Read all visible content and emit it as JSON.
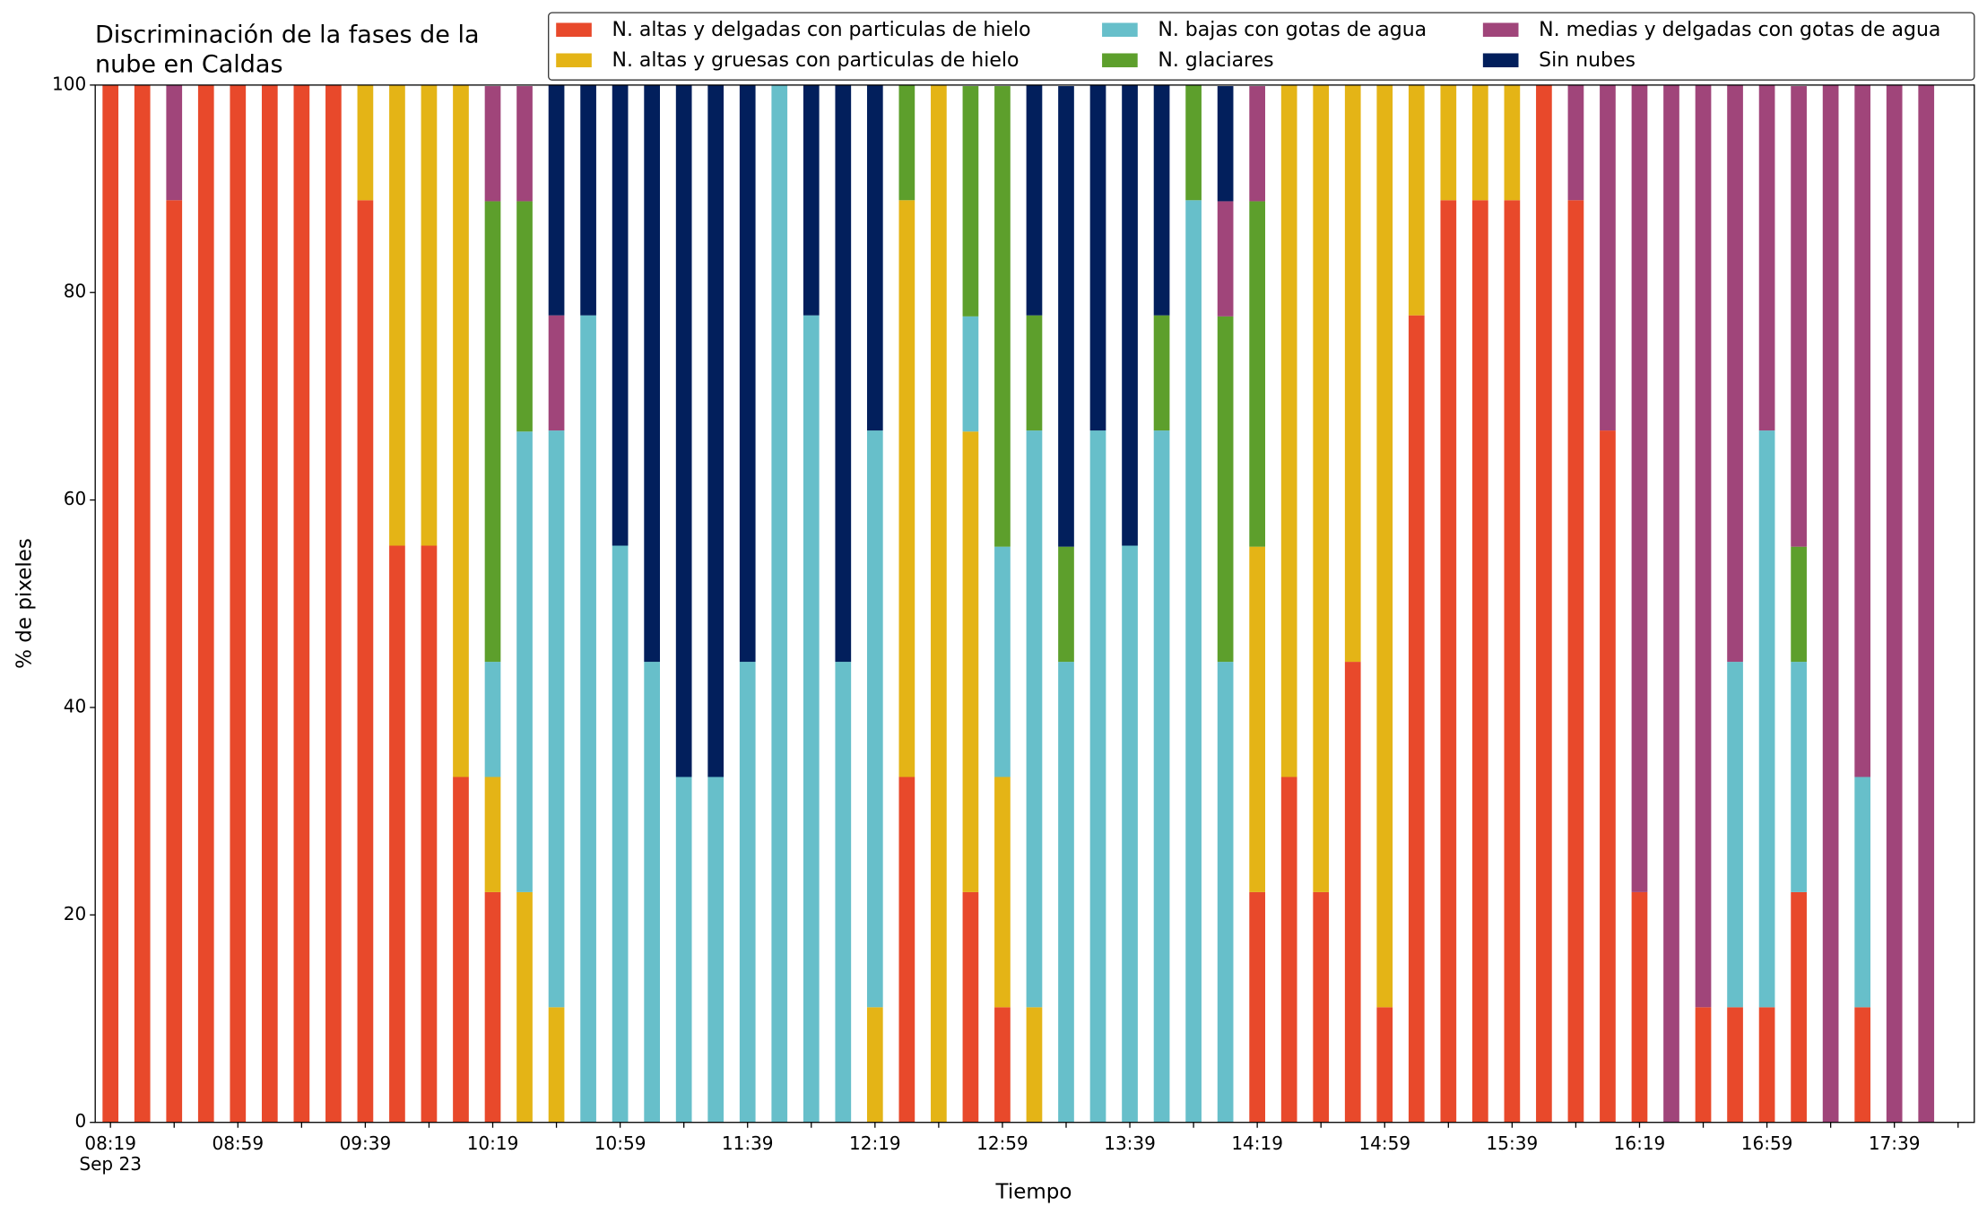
{
  "chart_data": {
    "type": "stacked_bar",
    "title": [
      "Discriminación de la fases de la",
      "nube en Caldas"
    ],
    "xlabel": "Tiempo",
    "ylabel": "% de pixeles",
    "categories": [
      "08:19",
      null,
      null,
      null,
      "08:59",
      null,
      null,
      null,
      "09:39",
      null,
      null,
      null,
      "10:19",
      null,
      null,
      null,
      "10:59",
      null,
      null,
      null,
      "11:39",
      null,
      null,
      null,
      "12:19",
      null,
      null,
      null,
      "12:59",
      null,
      null,
      null,
      "13:39",
      null,
      null,
      null,
      "14:19",
      null,
      null,
      null,
      "14:59",
      null,
      null,
      null,
      "15:39",
      null,
      null,
      null,
      "16:19",
      null,
      null,
      null,
      "16:59",
      null,
      null,
      null,
      "17:39",
      null
    ],
    "date_label": "Sep 23",
    "ylim": [
      0,
      100
    ],
    "yticks": [
      0,
      20,
      40,
      60,
      80,
      100
    ],
    "legend": "upper right",
    "series": [
      {
        "name": "N. altas y delgadas con particulas de hielo",
        "color": "#e8492b",
        "values": [
          100,
          100,
          88.9,
          100,
          100,
          100,
          100,
          100,
          88.9,
          55.6,
          55.6,
          33.3,
          22.2,
          0,
          0,
          0,
          0,
          0,
          0,
          0,
          0,
          0,
          0,
          0,
          0,
          33.3,
          0,
          22.2,
          11.1,
          0,
          0,
          0,
          0,
          0,
          0,
          0,
          22.2,
          33.3,
          22.2,
          44.4,
          11.1,
          77.8,
          88.9,
          88.9,
          88.9,
          100,
          88.9,
          66.7,
          22.2,
          0,
          11.1,
          11.1,
          11.1,
          22.2,
          0,
          11.1,
          0,
          0
        ]
      },
      {
        "name": "N. altas y gruesas con particulas de hielo",
        "color": "#e4b416",
        "values": [
          0,
          0,
          0,
          0,
          0,
          0,
          0,
          0,
          11.1,
          44.4,
          44.4,
          66.7,
          11.1,
          22.2,
          11.1,
          0,
          0,
          0,
          0,
          0,
          0,
          0,
          0,
          0,
          11.1,
          55.6,
          100,
          44.4,
          22.2,
          11.1,
          0,
          0,
          0,
          0,
          0,
          0,
          33.3,
          66.7,
          77.8,
          55.6,
          88.9,
          22.2,
          11.1,
          11.1,
          11.1,
          0,
          0,
          0,
          0,
          0,
          0,
          0,
          0,
          0,
          0,
          0,
          0,
          0
        ]
      },
      {
        "name": "N. bajas con gotas de agua",
        "color": "#67bfca",
        "values": [
          0,
          0,
          0,
          0,
          0,
          0,
          0,
          0,
          0,
          0,
          0,
          0,
          11.1,
          44.4,
          55.6,
          77.8,
          55.6,
          44.4,
          33.3,
          33.3,
          44.4,
          100,
          77.8,
          44.4,
          55.6,
          0,
          0,
          11.1,
          22.2,
          55.6,
          44.4,
          66.7,
          55.6,
          66.7,
          88.9,
          44.4,
          0,
          0,
          0,
          0,
          0,
          0,
          0,
          0,
          0,
          0,
          0,
          0,
          0,
          0,
          0,
          33.3,
          55.6,
          22.2,
          0,
          22.2,
          0,
          0
        ]
      },
      {
        "name": "N. glaciares",
        "color": "#5d9f2c",
        "values": [
          0,
          0,
          0,
          0,
          0,
          0,
          0,
          0,
          0,
          0,
          0,
          0,
          44.4,
          22.2,
          0,
          0,
          0,
          0,
          0,
          0,
          0,
          0,
          0,
          0,
          0,
          11.1,
          0,
          22.2,
          44.4,
          11.1,
          11.1,
          0,
          0,
          11.1,
          11.1,
          33.3,
          33.3,
          0,
          0,
          0,
          0,
          0,
          0,
          0,
          0,
          0,
          0,
          0,
          0,
          0,
          0,
          0,
          0,
          11.1,
          0,
          0,
          0,
          0
        ]
      },
      {
        "name": "N. medias y delgadas con gotas de agua",
        "color": "#a0457a",
        "values": [
          0,
          0,
          11.1,
          0,
          0,
          0,
          0,
          0,
          0,
          0,
          0,
          0,
          11.1,
          11.1,
          11.1,
          0,
          0,
          0,
          0,
          0,
          0,
          0,
          0,
          0,
          0,
          0,
          0,
          0,
          0,
          0,
          0,
          0,
          0,
          0,
          0,
          11.1,
          11.1,
          0,
          0,
          0,
          0,
          0,
          0,
          0,
          0,
          0,
          11.1,
          33.3,
          77.8,
          100,
          88.9,
          55.6,
          33.3,
          44.4,
          100,
          66.7,
          100,
          100
        ]
      },
      {
        "name": "Sin nubes",
        "color": "#021f5c",
        "values": [
          0,
          0,
          0,
          0,
          0,
          0,
          0,
          0,
          0,
          0,
          0,
          0,
          0,
          0,
          22.2,
          22.2,
          44.4,
          55.6,
          66.7,
          66.7,
          55.6,
          0,
          22.2,
          55.6,
          33.3,
          0,
          0,
          0,
          0,
          22.2,
          44.4,
          33.3,
          44.4,
          22.2,
          0,
          11.1,
          0,
          0,
          0,
          0,
          0,
          0,
          0,
          0,
          0,
          0,
          0,
          0,
          0,
          0,
          0,
          0,
          0,
          0,
          0,
          0,
          0,
          0
        ]
      }
    ]
  }
}
